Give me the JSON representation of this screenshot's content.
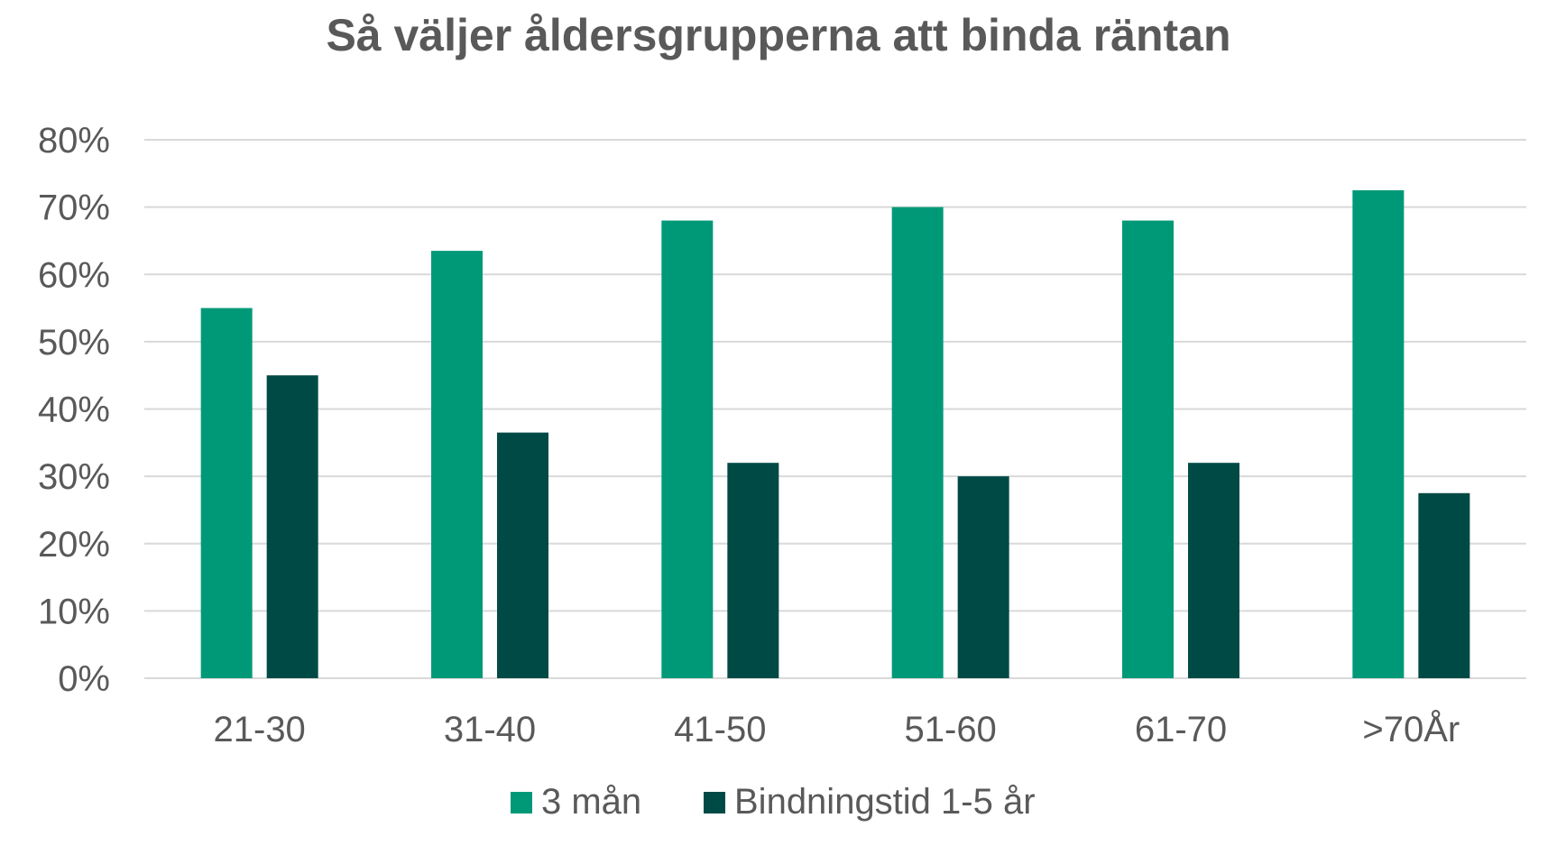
{
  "chart_data": {
    "type": "bar",
    "title": "Så väljer åldersgrupperna att binda räntan",
    "xlabel": "",
    "ylabel": "",
    "categories": [
      "21-30",
      "31-40",
      "41-50",
      "51-60",
      "61-70",
      ">70År"
    ],
    "series": [
      {
        "name": "3 mån",
        "color": "#009978",
        "values": [
          55,
          63.5,
          68,
          70,
          68,
          72.5
        ]
      },
      {
        "name": "Bindningstid 1-5 år",
        "color": "#004a46",
        "values": [
          45,
          36.5,
          32,
          30,
          32,
          27.5
        ]
      }
    ],
    "ylim": [
      0,
      80
    ],
    "yticks": [
      "0%",
      "10%",
      "20%",
      "30%",
      "40%",
      "50%",
      "60%",
      "70%",
      "80%"
    ],
    "grid": true,
    "legend_position": "bottom"
  }
}
